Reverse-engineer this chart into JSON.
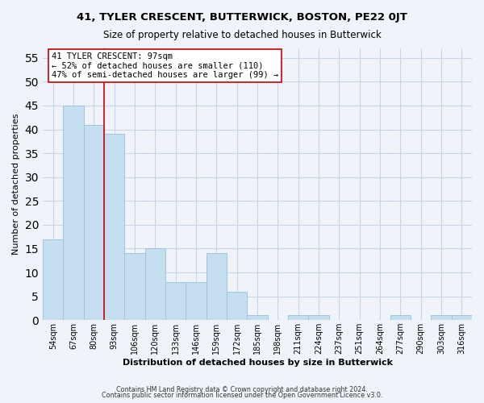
{
  "title": "41, TYLER CRESCENT, BUTTERWICK, BOSTON, PE22 0JT",
  "subtitle": "Size of property relative to detached houses in Butterwick",
  "xlabel": "Distribution of detached houses by size in Butterwick",
  "ylabel": "Number of detached properties",
  "footer_line1": "Contains HM Land Registry data © Crown copyright and database right 2024.",
  "footer_line2": "Contains public sector information licensed under the Open Government Licence v3.0.",
  "bar_labels": [
    "54sqm",
    "67sqm",
    "80sqm",
    "93sqm",
    "106sqm",
    "120sqm",
    "133sqm",
    "146sqm",
    "159sqm",
    "172sqm",
    "185sqm",
    "198sqm",
    "211sqm",
    "224sqm",
    "237sqm",
    "251sqm",
    "264sqm",
    "277sqm",
    "290sqm",
    "303sqm",
    "316sqm"
  ],
  "bar_values": [
    17,
    45,
    41,
    39,
    14,
    15,
    8,
    8,
    14,
    6,
    1,
    0,
    1,
    1,
    0,
    0,
    0,
    1,
    0,
    1,
    1
  ],
  "bar_color": "#c6dff0",
  "bar_edge_color": "#a0c4dc",
  "subject_bar_index": 3,
  "subject_line_color": "#cc0000",
  "annotation_line1": "41 TYLER CRESCENT: 97sqm",
  "annotation_line2": "← 52% of detached houses are smaller (110)",
  "annotation_line3": "47% of semi-detached houses are larger (99) →",
  "annotation_box_color": "#ffffff",
  "annotation_box_edge": "#cc0000",
  "ylim": [
    0,
    57
  ],
  "yticks": [
    0,
    5,
    10,
    15,
    20,
    25,
    30,
    35,
    40,
    45,
    50,
    55
  ],
  "background_color": "#f0f4fa",
  "grid_color": "#c8d4e8"
}
